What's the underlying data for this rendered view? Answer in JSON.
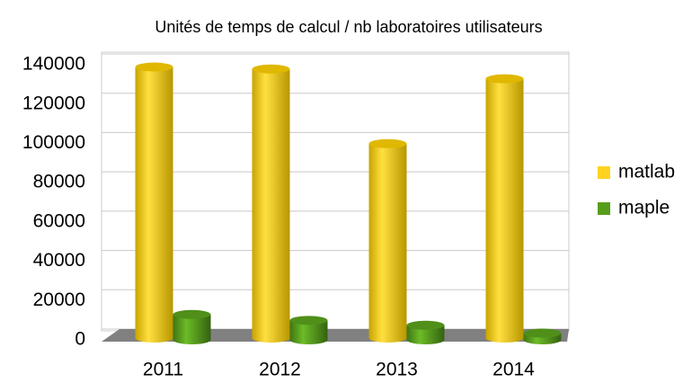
{
  "chart_data": {
    "type": "bar3d",
    "title": "Unités de temps de calcul / nb laboratoires utilisateurs",
    "categories": [
      "2011",
      "2012",
      "2013",
      "2014"
    ],
    "series": [
      {
        "name": "matlab",
        "color": "#ffd320",
        "values": [
          137000,
          136000,
          98000,
          131000
        ]
      },
      {
        "name": "maple",
        "color": "#579d1c",
        "values": [
          12000,
          9000,
          6500,
          2500
        ]
      }
    ],
    "ylim": [
      0,
      140000
    ],
    "yticks": [
      0,
      20000,
      40000,
      60000,
      80000,
      100000,
      120000,
      140000
    ],
    "grid": true,
    "legend": "right"
  }
}
